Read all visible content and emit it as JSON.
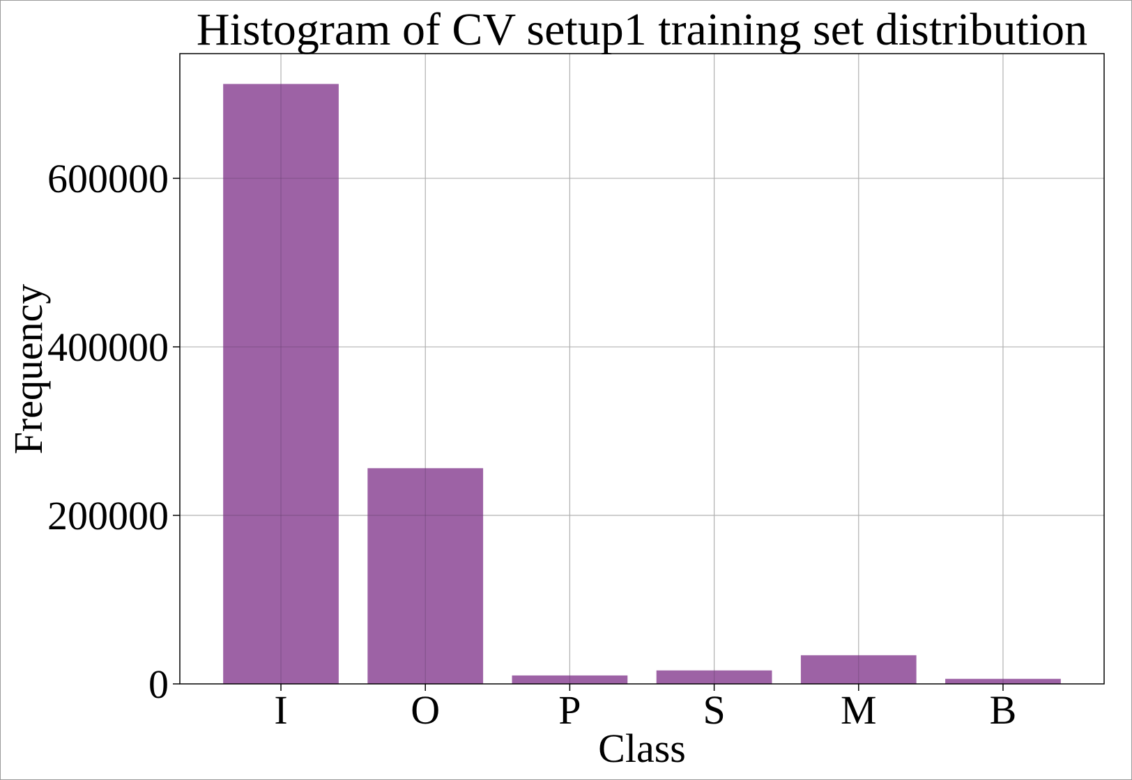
{
  "chart_data": {
    "type": "bar",
    "title": "Histogram of CV setup1 training set distribution",
    "xlabel": "Class",
    "ylabel": "Frequency",
    "categories": [
      "I",
      "O",
      "P",
      "S",
      "M",
      "B"
    ],
    "values": [
      712000,
      256000,
      10000,
      16000,
      34000,
      6000
    ],
    "yticks": [
      0,
      200000,
      400000,
      600000
    ],
    "ytick_labels": [
      "0",
      "200000",
      "400000",
      "600000"
    ],
    "ylim": [
      0,
      748000
    ],
    "grid": true,
    "legend": "none",
    "colors": {
      "bar": "#9b5fa3",
      "grid": "#b0b0b0",
      "axis": "#000000"
    }
  }
}
